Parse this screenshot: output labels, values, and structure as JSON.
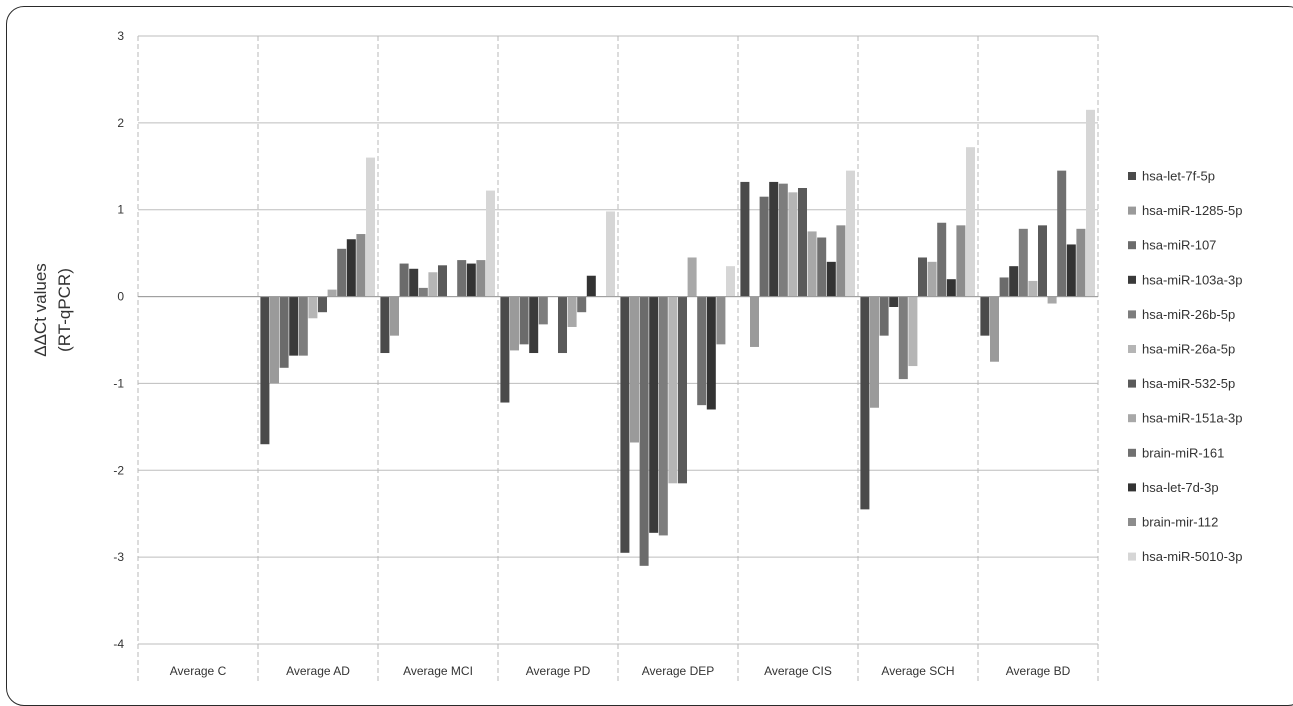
{
  "chart_data": {
    "type": "bar",
    "ylabel_lines": [
      "ΔΔCt values",
      "(RT-qPCR)"
    ],
    "xlabel": "",
    "ylim": [
      -4,
      3
    ],
    "yticks": [
      3,
      2,
      1,
      0,
      -1,
      -2,
      -3,
      -4
    ],
    "grid": true,
    "legend_position": "right",
    "categories": [
      "Average C",
      "Average AD",
      "Average MCI",
      "Average PD",
      "Average DEP",
      "Average CIS",
      "Average SCH",
      "Average BD"
    ],
    "series": [
      {
        "name": "hsa-let-7f-5p",
        "color": "#4a4a4a",
        "values": [
          0,
          -1.7,
          -0.65,
          -1.22,
          -2.95,
          1.32,
          -2.45,
          -0.45
        ]
      },
      {
        "name": "hsa-miR-1285-5p",
        "color": "#9a9a9a",
        "values": [
          0,
          -1.0,
          -0.45,
          -0.62,
          -1.68,
          -0.58,
          -1.28,
          -0.75
        ]
      },
      {
        "name": "hsa-miR-107",
        "color": "#6b6b6b",
        "values": [
          0,
          -0.82,
          0.38,
          -0.55,
          -3.1,
          1.15,
          -0.45,
          0.22
        ]
      },
      {
        "name": "hsa-miR-103a-3p",
        "color": "#3a3a3a",
        "values": [
          0,
          -0.68,
          0.32,
          -0.65,
          -2.72,
          1.32,
          -0.12,
          0.35
        ]
      },
      {
        "name": "hsa-miR-26b-5p",
        "color": "#7d7d7d",
        "values": [
          0,
          -0.68,
          0.1,
          -0.32,
          -2.75,
          1.3,
          -0.95,
          0.78
        ]
      },
      {
        "name": "hsa-miR-26a-5p",
        "color": "#b5b5b5",
        "values": [
          0,
          -0.25,
          0.28,
          0.0,
          -2.15,
          1.2,
          -0.8,
          0.18
        ]
      },
      {
        "name": "hsa-miR-532-5p",
        "color": "#5a5a5a",
        "values": [
          0,
          -0.18,
          0.36,
          -0.65,
          -2.15,
          1.25,
          0.45,
          0.82
        ]
      },
      {
        "name": "hsa-miR-151a-3p",
        "color": "#a8a8a8",
        "values": [
          0,
          0.08,
          0.0,
          -0.35,
          0.45,
          0.75,
          0.4,
          -0.08
        ]
      },
      {
        "name": "brain-miR-161",
        "color": "#707070",
        "values": [
          0,
          0.55,
          0.42,
          -0.18,
          -1.25,
          0.68,
          0.85,
          1.45
        ]
      },
      {
        "name": "hsa-let-7d-3p",
        "color": "#333333",
        "values": [
          0,
          0.66,
          0.38,
          0.24,
          -1.3,
          0.4,
          0.2,
          0.6
        ]
      },
      {
        "name": "brain-mir-112",
        "color": "#8c8c8c",
        "values": [
          0,
          0.72,
          0.42,
          0.0,
          -0.55,
          0.82,
          0.82,
          0.78
        ]
      },
      {
        "name": "hsa-miR-5010-3p",
        "color": "#d6d6d6",
        "values": [
          0,
          1.6,
          1.22,
          0.98,
          0.35,
          1.45,
          1.72,
          2.15
        ]
      }
    ]
  }
}
